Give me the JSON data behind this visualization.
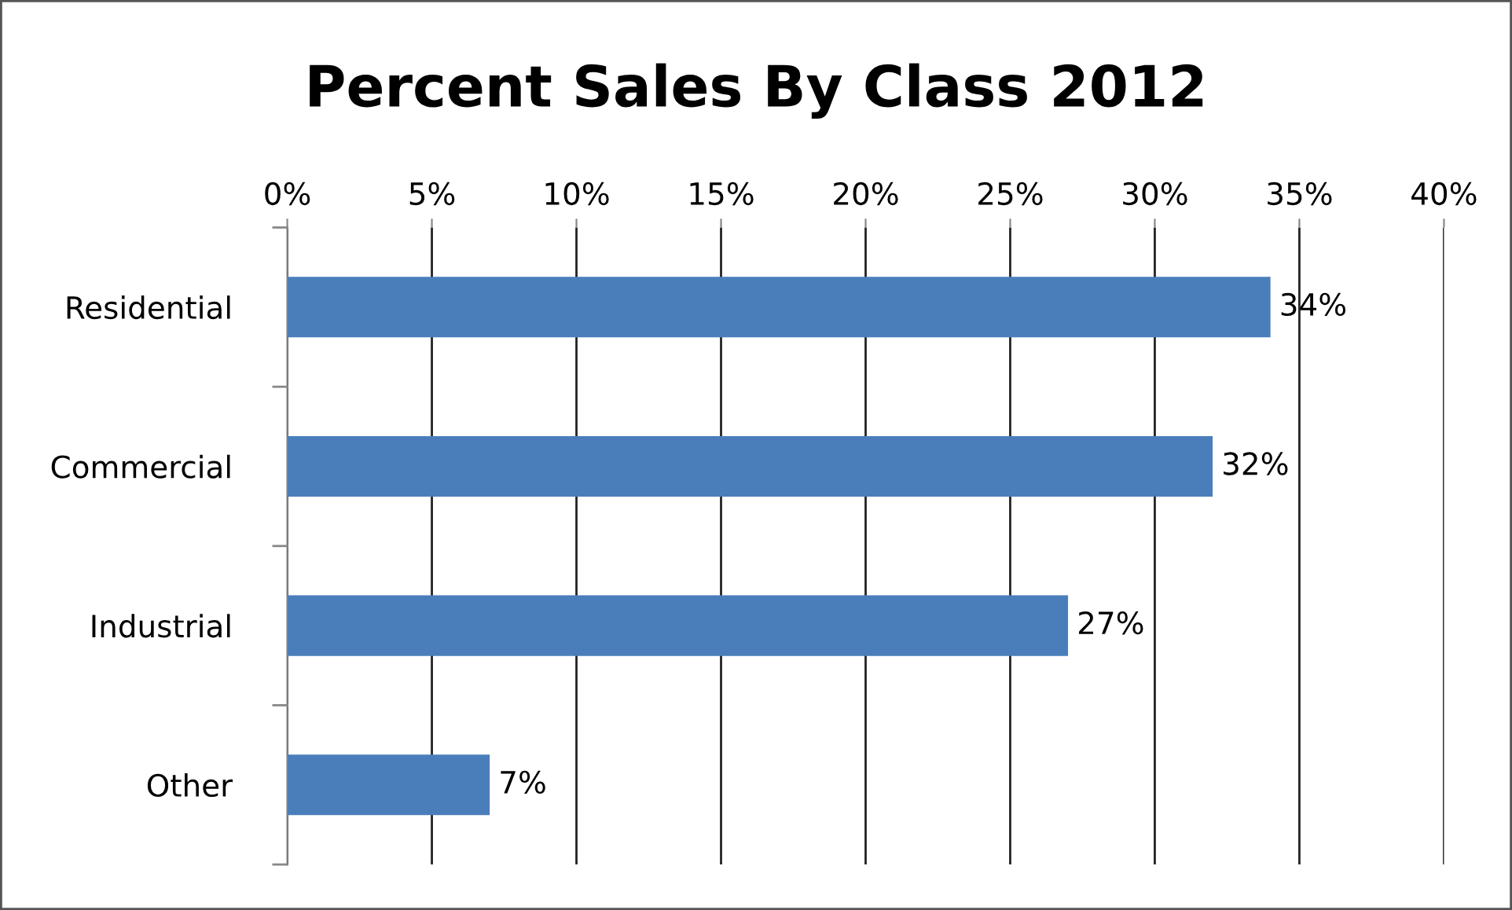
{
  "chart_data": {
    "type": "bar",
    "orientation": "horizontal",
    "title": "Percent Sales By Class 2012",
    "categories": [
      "Residential",
      "Commercial",
      "Industrial",
      "Other"
    ],
    "values": [
      34,
      32,
      27,
      7
    ],
    "value_labels": [
      "34%",
      "32%",
      "27%",
      "7%"
    ],
    "color": "#4a7ebb",
    "xlim": [
      0,
      40
    ],
    "xticks": [
      {
        "value": 0,
        "label": "0%"
      },
      {
        "value": 5,
        "label": "5%"
      },
      {
        "value": 10,
        "label": "10%"
      },
      {
        "value": 15,
        "label": "15%"
      },
      {
        "value": 20,
        "label": "20%"
      },
      {
        "value": 25,
        "label": "25%"
      },
      {
        "value": 30,
        "label": "30%"
      },
      {
        "value": 35,
        "label": "35%"
      },
      {
        "value": 40,
        "label": "40%"
      }
    ],
    "grid": "x",
    "legend": false
  }
}
